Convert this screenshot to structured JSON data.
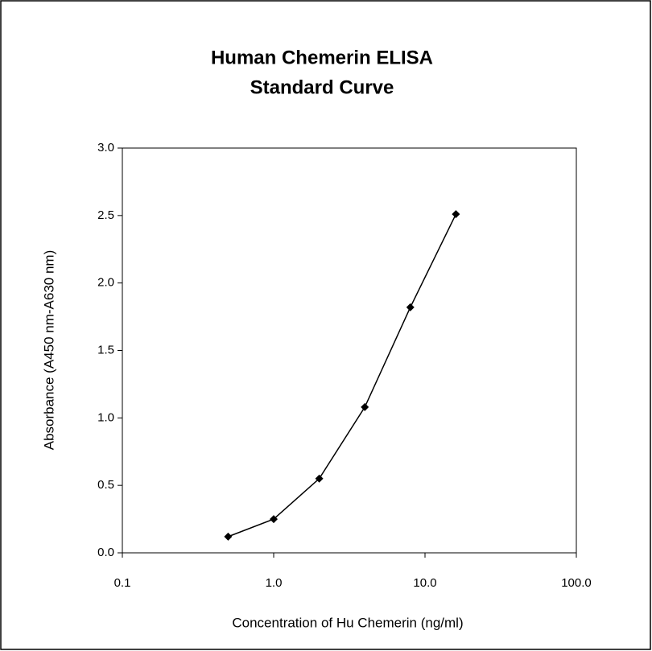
{
  "chart_data": {
    "type": "line",
    "title": [
      "Human Chemerin ELISA",
      "Standard Curve"
    ],
    "xlabel": "Concentration of Hu Chemerin (ng/ml)",
    "ylabel": "Absorbance (A450 nm-A630 nm)",
    "x": [
      0.5,
      1,
      2,
      4,
      8,
      16
    ],
    "values": [
      0.12,
      0.25,
      0.55,
      1.08,
      1.82,
      2.51
    ],
    "color": "#000000",
    "xscale": "log",
    "xlim": [
      0.1,
      100
    ],
    "xticks": [
      0.1,
      {
        "value": 1,
        "label": "1.0"
      },
      {
        "value": 10,
        "label": "10.0"
      },
      {
        "value": 100,
        "label": "100.0"
      }
    ],
    "ylim": [
      0,
      3
    ],
    "yticks": [
      {
        "value": 0,
        "label": "0.0"
      },
      0.5,
      {
        "value": 1,
        "label": "1.0"
      },
      1.5,
      {
        "value": 2,
        "label": "2.0"
      },
      2.5,
      {
        "value": 3,
        "label": "3.0"
      }
    ],
    "grid": false
  }
}
